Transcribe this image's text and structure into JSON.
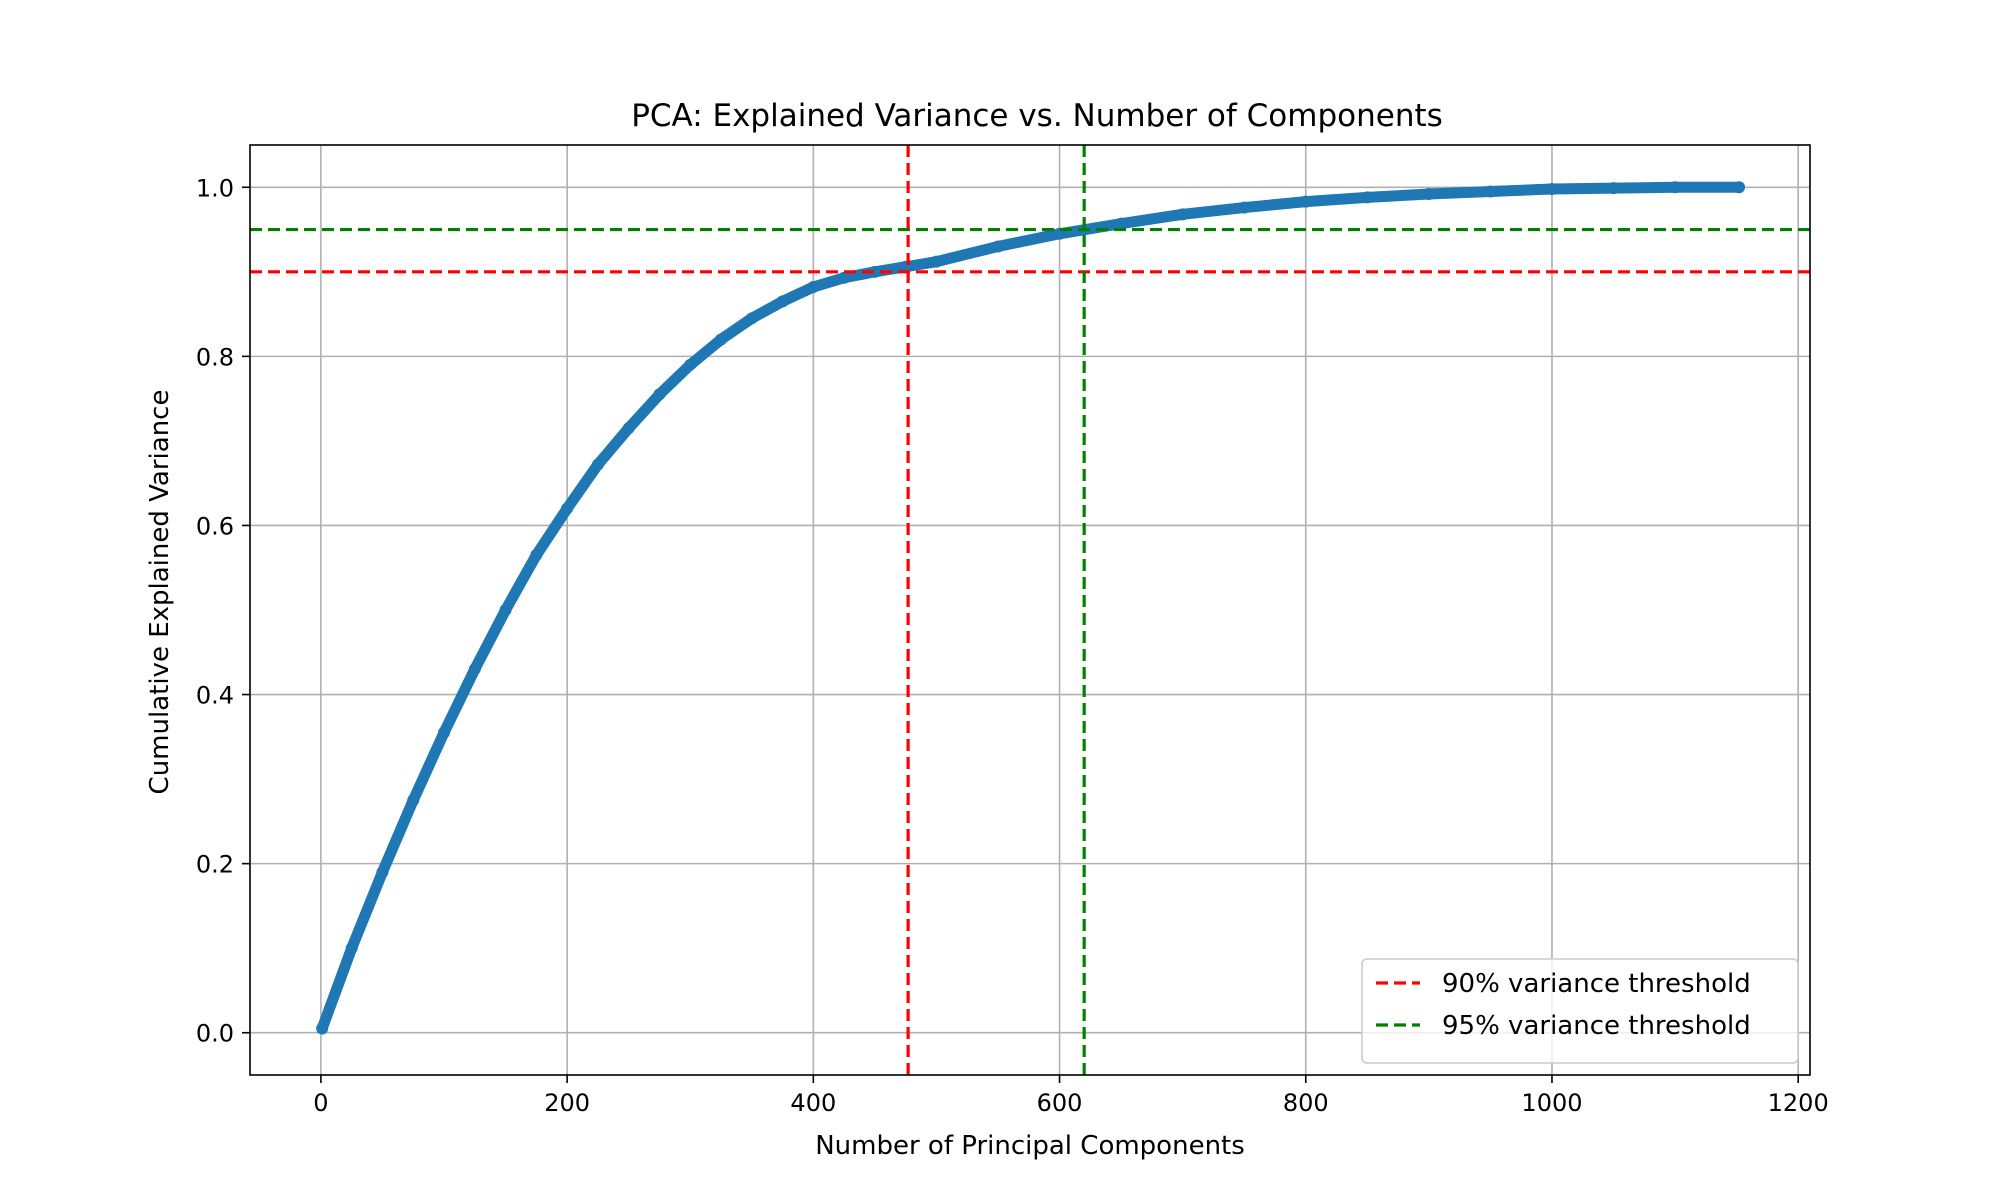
{
  "chart_data": {
    "type": "line",
    "title": "PCA: Explained Variance vs. Number of Components",
    "xlabel": "Number of Principal Components",
    "ylabel": "Cumulative Explained Variance",
    "xlim": [
      -57.6,
      1209.6
    ],
    "ylim": [
      -0.05,
      1.05
    ],
    "x_ticks": [
      0,
      200,
      400,
      600,
      800,
      1000,
      1200
    ],
    "x_tick_labels": [
      "0",
      "200",
      "400",
      "600",
      "800",
      "1000",
      "1200"
    ],
    "y_ticks": [
      0.0,
      0.2,
      0.4,
      0.6,
      0.8,
      1.0
    ],
    "y_tick_labels": [
      "0.0",
      "0.2",
      "0.4",
      "0.6",
      "0.8",
      "1.0"
    ],
    "grid": true,
    "legend_position": "lower-right",
    "series": [
      {
        "color": "#1f77b4",
        "marker": "dot",
        "x": [
          1,
          25,
          50,
          75,
          100,
          125,
          150,
          175,
          200,
          225,
          250,
          275,
          300,
          325,
          350,
          375,
          400,
          425,
          450,
          475,
          500,
          550,
          600,
          650,
          700,
          750,
          800,
          850,
          900,
          950,
          1000,
          1050,
          1100,
          1152
        ],
        "y": [
          0.005,
          0.1,
          0.19,
          0.275,
          0.355,
          0.43,
          0.5,
          0.565,
          0.62,
          0.672,
          0.715,
          0.755,
          0.79,
          0.82,
          0.845,
          0.865,
          0.882,
          0.893,
          0.9,
          0.906,
          0.912,
          0.93,
          0.945,
          0.957,
          0.968,
          0.976,
          0.983,
          0.988,
          0.992,
          0.995,
          0.998,
          0.999,
          1.0,
          1.0
        ]
      }
    ],
    "threshold_lines": [
      {
        "name": "90% variance threshold",
        "orientation": "horizontal",
        "value": 0.9,
        "color": "#ff0000",
        "style": "dashed"
      },
      {
        "name": "95% variance threshold",
        "orientation": "horizontal",
        "value": 0.95,
        "color": "#008000",
        "style": "dashed"
      },
      {
        "orientation": "vertical",
        "value": 477,
        "color": "#ff0000",
        "style": "dashed"
      },
      {
        "orientation": "vertical",
        "value": 620,
        "color": "#008000",
        "style": "dashed"
      }
    ],
    "legend": [
      {
        "label": "90% variance threshold",
        "color": "#ff0000",
        "style": "dashed"
      },
      {
        "label": "95% variance threshold",
        "color": "#008000",
        "style": "dashed"
      }
    ]
  }
}
